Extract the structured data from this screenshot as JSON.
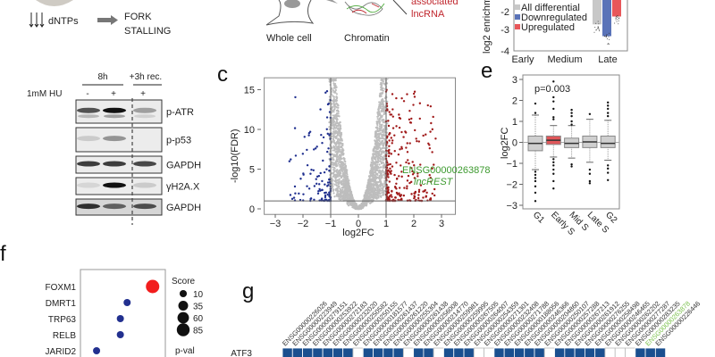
{
  "panel_a": {
    "schematic": {
      "dntps": "dNTPs",
      "fork_line1": "FORK",
      "fork_line2": "STALLING"
    },
    "western": {
      "timepoints": [
        "8h",
        "+3h rec."
      ],
      "treatment_label": "1mM HU",
      "lanes": [
        "-",
        "+",
        "+"
      ],
      "blots": [
        "p-ATR",
        "p-p53",
        "GAPDH",
        "γH2A.X",
        "GAPDH"
      ]
    }
  },
  "panel_b_schematic": {
    "whole_cell": "Whole cell",
    "chromatin": "Chromatin",
    "assoc_line1": "associated",
    "assoc_line2": "lncRNA"
  },
  "colors": {
    "red": "#c0262d",
    "blue": "#1f3f99",
    "gray": "#bdbdbd",
    "green": "#3c9a2e",
    "heat_blue": "#1a4f8f"
  },
  "chart_data": [
    {
      "type": "bar",
      "ylabel": "log2 enrichm",
      "categories": [
        "Early",
        "Medium",
        "Late"
      ],
      "yticks": [
        -2,
        -3,
        -4
      ],
      "legend": [
        "All differential",
        "Downregulated",
        "Upregulated"
      ],
      "series": [
        {
          "name": "All differential",
          "color": "#c8c8c8",
          "values": [
            null,
            null,
            -2.65
          ]
        },
        {
          "name": "Downregulated",
          "color": "#5a73b8",
          "values": [
            null,
            null,
            -3.25
          ]
        },
        {
          "name": "Upregulated",
          "color": "#e8575a",
          "values": [
            null,
            null,
            -2.25
          ]
        }
      ]
    },
    {
      "type": "scatter",
      "panel_label": "c",
      "xlabel": "log2FC",
      "ylabel": "-log10(FDR)",
      "xlim": [
        -3.4,
        3.5
      ],
      "ylim": [
        -0.7,
        16.5
      ],
      "xticks": [
        -3,
        -2,
        -1,
        0,
        1,
        2,
        3
      ],
      "yticks": [
        0,
        5,
        10,
        15
      ],
      "thresholds": {
        "log2fc": [
          -1,
          1
        ],
        "neg_log10_fdr": 1
      },
      "point_groups": [
        "not significant (gray)",
        "downregulated (blue)",
        "upregulated (red)"
      ],
      "annotation": {
        "gene_id": "ENSG00000263878",
        "name": "lncREST"
      }
    },
    {
      "type": "box",
      "panel_label": "e",
      "ylabel": "log2FC",
      "ylim": [
        -3,
        3
      ],
      "yticks": [
        3,
        2,
        1,
        0,
        -1,
        -2,
        -3
      ],
      "annotation": "p=0.003",
      "categories": [
        "G1",
        "Early S",
        "Mid S",
        "Late S",
        "G2"
      ],
      "boxes": [
        {
          "q1": -0.4,
          "median": -0.05,
          "q3": 0.3,
          "low": -1.3,
          "high": 1.3,
          "highlight": false
        },
        {
          "q1": -0.1,
          "median": 0.1,
          "q3": 0.3,
          "low": -0.7,
          "high": 0.8,
          "highlight": true
        },
        {
          "q1": -0.25,
          "median": -0.05,
          "q3": 0.2,
          "low": -0.75,
          "high": 0.8,
          "highlight": false
        },
        {
          "q1": -0.25,
          "median": 0.02,
          "q3": 0.3,
          "low": -0.95,
          "high": 1.1,
          "highlight": false
        },
        {
          "q1": -0.25,
          "median": -0.05,
          "q3": 0.3,
          "low": -0.85,
          "high": 1.05,
          "highlight": false
        }
      ],
      "outliers": [
        [
          1.85,
          1.4,
          -1.4,
          -1.55,
          -1.7,
          -1.85,
          -2.1,
          -2.4,
          -2.8
        ],
        [
          2.9,
          2.15,
          1.95,
          1.6,
          1.2,
          1.1,
          -0.8,
          -0.95,
          -1.1,
          -1.3,
          -1.5,
          -1.85,
          -2.2
        ],
        [
          1.55,
          1.4,
          1.25,
          1.0,
          0.85,
          -1.05,
          -1.15
        ],
        [
          1.35,
          -1.3,
          -1.5,
          -1.85,
          -1.95
        ],
        [
          1.9,
          1.75,
          1.6,
          1.4,
          1.25,
          -1.1,
          -1.25,
          -1.45,
          -1.8
        ]
      ]
    },
    {
      "type": "scatter",
      "panel_label": "f",
      "categories": [
        "FOXM1",
        "DMRT1",
        "TRP63",
        "RELB",
        "JARID2"
      ],
      "scores": [
        85,
        35,
        35,
        35,
        35
      ],
      "position": [
        0.85,
        0.55,
        0.47,
        0.47,
        0.19
      ],
      "highlight": [
        true,
        false,
        false,
        false,
        false
      ],
      "legend_title": "Score",
      "legend_sizes": [
        10,
        35,
        60,
        85
      ],
      "legend2_title": "p-val"
    },
    {
      "type": "heatmap",
      "panel_label": "g",
      "row": "ATF3",
      "highlight_column": "ENSG00000263878",
      "columns": [
        "ENSG00000226026",
        "ENSG00000223949",
        "ENSG00000279151",
        "ENSG00000253922",
        "ENSG00000272183",
        "ENSG00000232020",
        "ENSG00000250582",
        "ENSG00000250155",
        "ENSG00000181577",
        "ENSG00000261437",
        "ENSG00000261220",
        "ENSG00000255304",
        "ENSG00000261438",
        "ENSG00000256008",
        "ENSG00000214770",
        "ENSG00000259981",
        "ENSG00000259995",
        "ENSG00000267505",
        "ENSG00000264007",
        "ENSG00000254359",
        "ENSG00000271301",
        "ENSG00000232408",
        "ENSG00000271788",
        "ENSG00000188056",
        "ENSG00000246366",
        "ENSG00000204860",
        "ENSG00000250107",
        "ENSG00000257288",
        "ENSG00000267213",
        "ENSG00000261912",
        "ENSG00000276255",
        "ENSG00000258498",
        "ENSG00000246465",
        "ENSG00000262202",
        "ENSG00000277287",
        "ENSG00000283235",
        "ENSG00000263878",
        "ENSG00000226446"
      ],
      "values": [
        1,
        1,
        1,
        1,
        1,
        1,
        1,
        0,
        1,
        1,
        1,
        1,
        0,
        1,
        1,
        0,
        1,
        1,
        1,
        0,
        0,
        1,
        1,
        1,
        1,
        1,
        0,
        1,
        1,
        1,
        1,
        1,
        0,
        0,
        0,
        1,
        1,
        1
      ]
    }
  ]
}
